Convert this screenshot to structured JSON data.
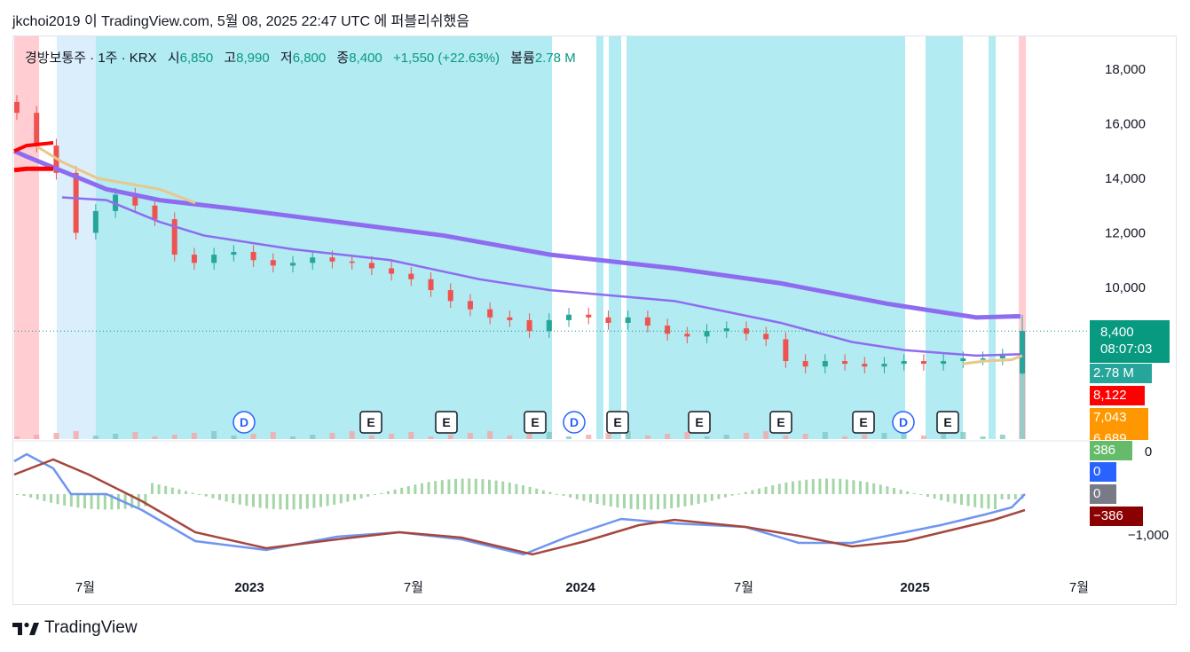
{
  "header": "jkchoi2019 이 TradingView.com, 5월 08, 2025 22:47 UTC 에 퍼블리쉬했음",
  "legend": {
    "name": "경방보통주 · 1주 · KRX",
    "open_label": "시",
    "open": "6,850",
    "high_label": "고",
    "high": "8,990",
    "low_label": "저",
    "low": "6,800",
    "close_label": "종",
    "close": "8,400",
    "change": "+1,550 (+22.63%)",
    "volume_label": "볼륨",
    "volume": "2.78 M"
  },
  "price_axis": [
    "18,000",
    "16,000",
    "14,000",
    "12,000",
    "10,000"
  ],
  "osc_axis": [
    "0",
    "−1,000"
  ],
  "time_axis": [
    "7월",
    "2023",
    "7월",
    "2024",
    "7월",
    "2025",
    "7월"
  ],
  "tags": {
    "price": "8,400",
    "countdown": "08:07:03",
    "volume": "2.78 M",
    "ma_red": "8,122",
    "ma_orange": "7,043",
    "ma_partial": "6,689",
    "osc_green": "386",
    "osc_blue": "0",
    "osc_gray": "0",
    "osc_darkred": "−386"
  },
  "events": [
    {
      "type": "D",
      "label": "D"
    },
    {
      "type": "E",
      "label": "E"
    },
    {
      "type": "E",
      "label": "E"
    },
    {
      "type": "E",
      "label": "E"
    },
    {
      "type": "D",
      "label": "D"
    },
    {
      "type": "E",
      "label": "E"
    },
    {
      "type": "E",
      "label": "E"
    },
    {
      "type": "E",
      "label": "E"
    },
    {
      "type": "E",
      "label": "E"
    },
    {
      "type": "D",
      "label": "D"
    },
    {
      "type": "E",
      "label": "E"
    }
  ],
  "colors": {
    "up": "#26a69a",
    "down": "#ef5350",
    "bg_zone": "#b2ebf2",
    "bg_red": "#ffcdd2",
    "ma_long": "#8e6cf0",
    "ma_short": "#8e6cf0",
    "ma_tan": "#e8c88a",
    "ma_red": "#ff0000",
    "macd": "#6f95ef",
    "signal": "#a5473e",
    "hist": "#a5d6a7"
  },
  "footer": "TradingView",
  "chart_data": {
    "type": "candlestick",
    "interval": "1주",
    "ylim": [
      6300,
      18900
    ],
    "x_range": [
      "2022-05",
      "2025-07"
    ],
    "last": {
      "open": 6850,
      "high": 8990,
      "low": 6800,
      "close": 8400,
      "change": 1550,
      "change_pct": 22.63,
      "volume": "2.78M"
    },
    "price_series_close": [
      16400,
      15200,
      14200,
      12000,
      12800,
      13400,
      13000,
      12500,
      11200,
      10900,
      11200,
      11300,
      11000,
      10800,
      10900,
      11100,
      10950,
      10900,
      10700,
      10500,
      10300,
      9900,
      9500,
      9200,
      8900,
      8800,
      8400,
      8800,
      9000,
      8900,
      8700,
      8900,
      8600,
      8300,
      8200,
      8400,
      8500,
      8300,
      8100,
      7300,
      7100,
      7300,
      7200,
      7100,
      7200,
      7300,
      7200,
      7300,
      7400,
      7400,
      7500,
      8400
    ],
    "ma_long_end": 8122,
    "ma_mid_end": 7043,
    "oscillator": {
      "macd_ylim": [
        -1400,
        1500
      ],
      "macd_end": 0,
      "signal_end": -386,
      "hist_end": 386
    }
  }
}
